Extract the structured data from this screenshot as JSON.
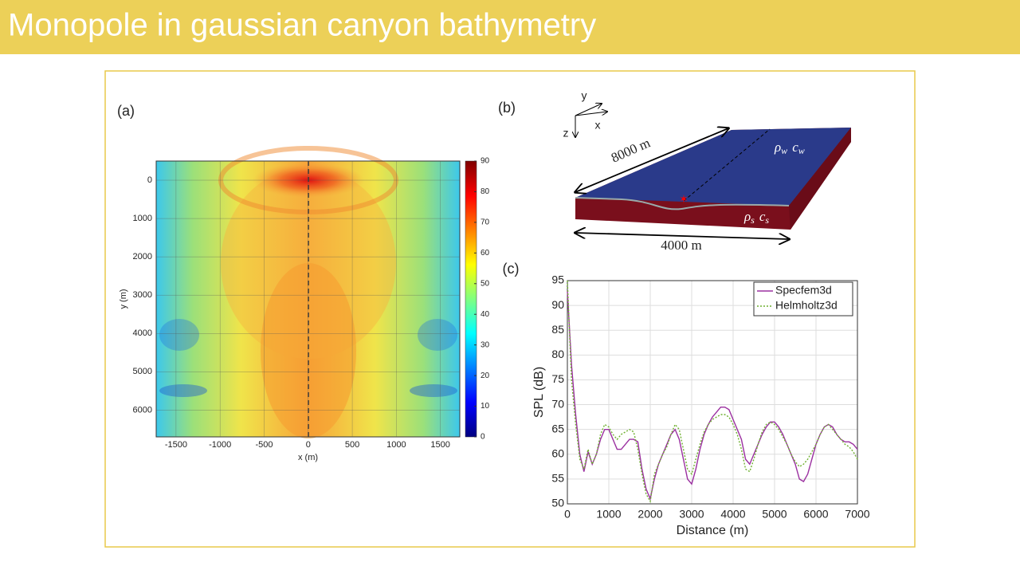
{
  "header": {
    "title": "Monopole in gaussian canyon bathymetry"
  },
  "diagram": {
    "panel_label": "(b)",
    "axes": [
      "y",
      "x",
      "z"
    ],
    "length_label": "8000 m",
    "width_label": "4000 m",
    "water_label": [
      "ρ",
      "w",
      "c",
      "w"
    ],
    "sediment_label": [
      "ρ",
      "s",
      "c",
      "s"
    ]
  },
  "chart_data": [
    {
      "type": "heatmap",
      "panel_label": "(a)",
      "x_label": "x (m)",
      "y_label": "y (m)",
      "xlim": [
        -1725,
        1720
      ],
      "xticks": [
        -1500,
        -1000,
        -500,
        0,
        500,
        1000,
        1500
      ],
      "ylim": [
        -500,
        6700
      ],
      "yticks": [
        0,
        1000,
        2000,
        3000,
        4000,
        5000,
        6000
      ],
      "y_inverted": true,
      "colormap": "jet",
      "clim": [
        0,
        90
      ],
      "cticks": [
        0,
        10,
        20,
        30,
        40,
        50,
        60,
        70,
        80,
        90
      ],
      "grid": true
    },
    {
      "type": "line",
      "panel_label": "(c)",
      "x_label": "Distance (m)",
      "y_label": "SPL (dB)",
      "xlim": [
        0,
        7000
      ],
      "xticks": [
        0,
        1000,
        2000,
        3000,
        4000,
        5000,
        6000,
        7000
      ],
      "ylim": [
        50,
        95
      ],
      "yticks": [
        50,
        55,
        60,
        65,
        70,
        75,
        80,
        85,
        90,
        95
      ],
      "grid": true,
      "legend": "top-right",
      "x": [
        0,
        100,
        200,
        300,
        400,
        500,
        600,
        700,
        800,
        900,
        1000,
        1100,
        1200,
        1300,
        1400,
        1500,
        1600,
        1700,
        1800,
        1900,
        2000,
        2100,
        2200,
        2300,
        2400,
        2500,
        2600,
        2700,
        2800,
        2900,
        3000,
        3100,
        3200,
        3300,
        3400,
        3500,
        3600,
        3700,
        3800,
        3900,
        4000,
        4100,
        4200,
        4300,
        4400,
        4500,
        4600,
        4700,
        4800,
        4900,
        5000,
        5100,
        5200,
        5300,
        5400,
        5500,
        5600,
        5700,
        5800,
        5900,
        6000,
        6100,
        6200,
        6300,
        6400,
        6500,
        6600,
        6700,
        6800,
        6900,
        7000
      ],
      "series": [
        {
          "name": "Specfem3d",
          "color": "#9b30a0",
          "dash": "solid",
          "values": [
            93,
            78,
            68,
            60,
            56.5,
            60.5,
            58,
            60,
            63,
            65,
            65,
            63,
            61,
            61,
            62,
            63,
            63,
            62.5,
            57,
            53,
            51,
            55,
            58,
            60,
            62,
            64,
            65,
            63,
            59,
            55,
            54,
            57,
            61,
            64,
            66,
            67.5,
            68.5,
            69.5,
            69.5,
            69,
            67,
            65,
            63,
            59,
            58,
            60,
            62,
            64,
            65.5,
            66.5,
            66.5,
            65.5,
            64,
            62,
            60,
            58,
            55,
            54.5,
            56,
            59,
            62,
            64,
            65.5,
            66,
            65.5,
            64,
            63,
            62.5,
            62.5,
            62,
            61
          ]
        },
        {
          "name": "Helmholtz3d",
          "color": "#6fb030",
          "dash": "dotted",
          "values": [
            95,
            75,
            66,
            59,
            57,
            61,
            58,
            60,
            64,
            66,
            65.5,
            64,
            63,
            64,
            64.5,
            65,
            64.5,
            61,
            56,
            52,
            50.5,
            56,
            58,
            60,
            61.5,
            64,
            66,
            65,
            61,
            57,
            56,
            59,
            62,
            64.5,
            66,
            67,
            67.5,
            68,
            68,
            67.5,
            66,
            64,
            61,
            57,
            56.5,
            59,
            62,
            64.5,
            66,
            66.5,
            66,
            65,
            63.5,
            62,
            60,
            58.5,
            57.5,
            58,
            59,
            60.5,
            62,
            64,
            65.5,
            66,
            65,
            64,
            63,
            62,
            61.5,
            60.5,
            59
          ]
        }
      ]
    }
  ]
}
